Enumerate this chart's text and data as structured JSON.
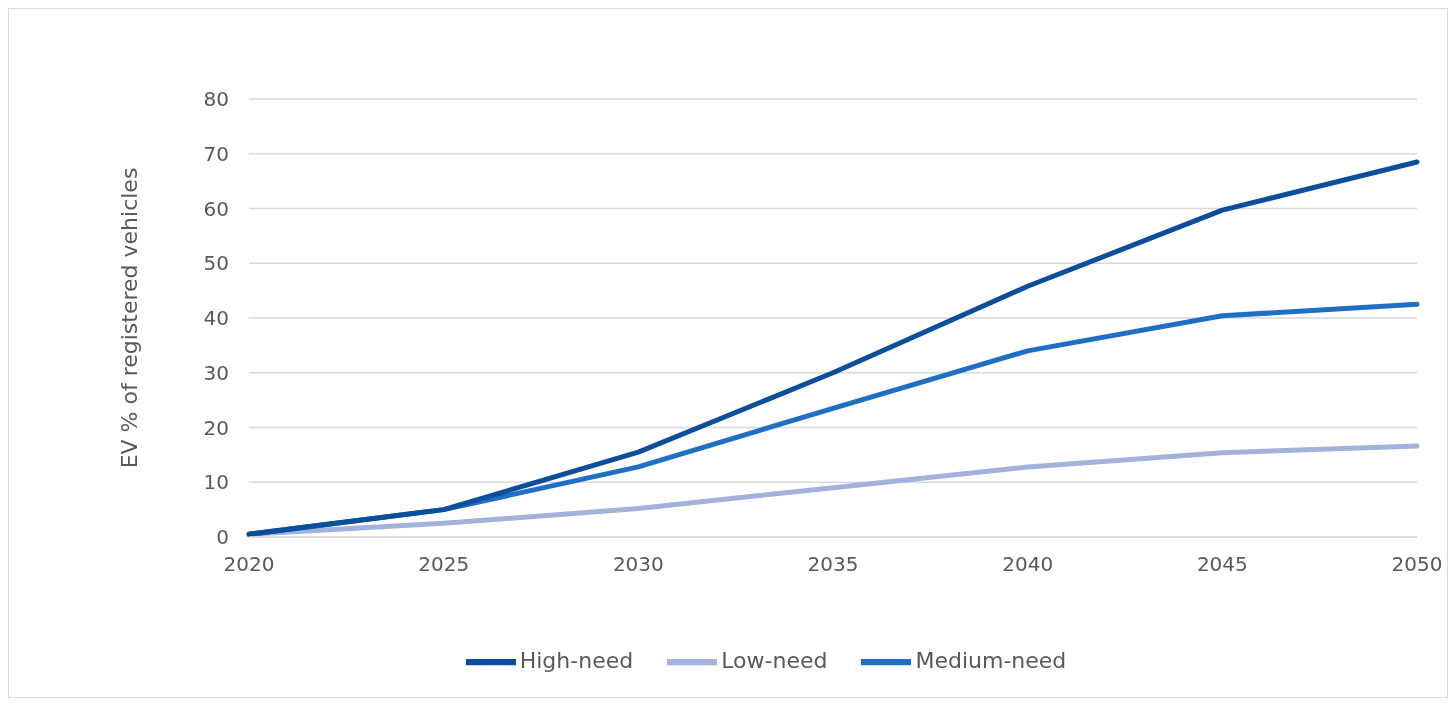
{
  "chart_data": {
    "type": "line",
    "ylabel": "EV % of registered vehicles",
    "categories": [
      "2020",
      "2025",
      "2030",
      "2035",
      "2040",
      "2045",
      "2050"
    ],
    "series": [
      {
        "name": "Low-need",
        "color": "#a3b2dc",
        "values": [
          0.5,
          2.5,
          5.2,
          9,
          12.8,
          15.4,
          16.6
        ]
      },
      {
        "name": "Medium-need",
        "color": "#1f6fc5",
        "values": [
          0.5,
          5,
          12.8,
          23.5,
          34,
          40.4,
          42.5
        ]
      },
      {
        "name": "High-need",
        "color": "#0b4f9c",
        "values": [
          0.5,
          5,
          15.5,
          30,
          45.8,
          59.7,
          68.5
        ]
      }
    ],
    "ylim": [
      0,
      80
    ],
    "yticks": [
      0,
      10,
      20,
      30,
      40,
      50,
      60,
      70,
      80
    ],
    "grid": "y",
    "legend": "bottom",
    "marker": "none",
    "line_style": "solid"
  }
}
